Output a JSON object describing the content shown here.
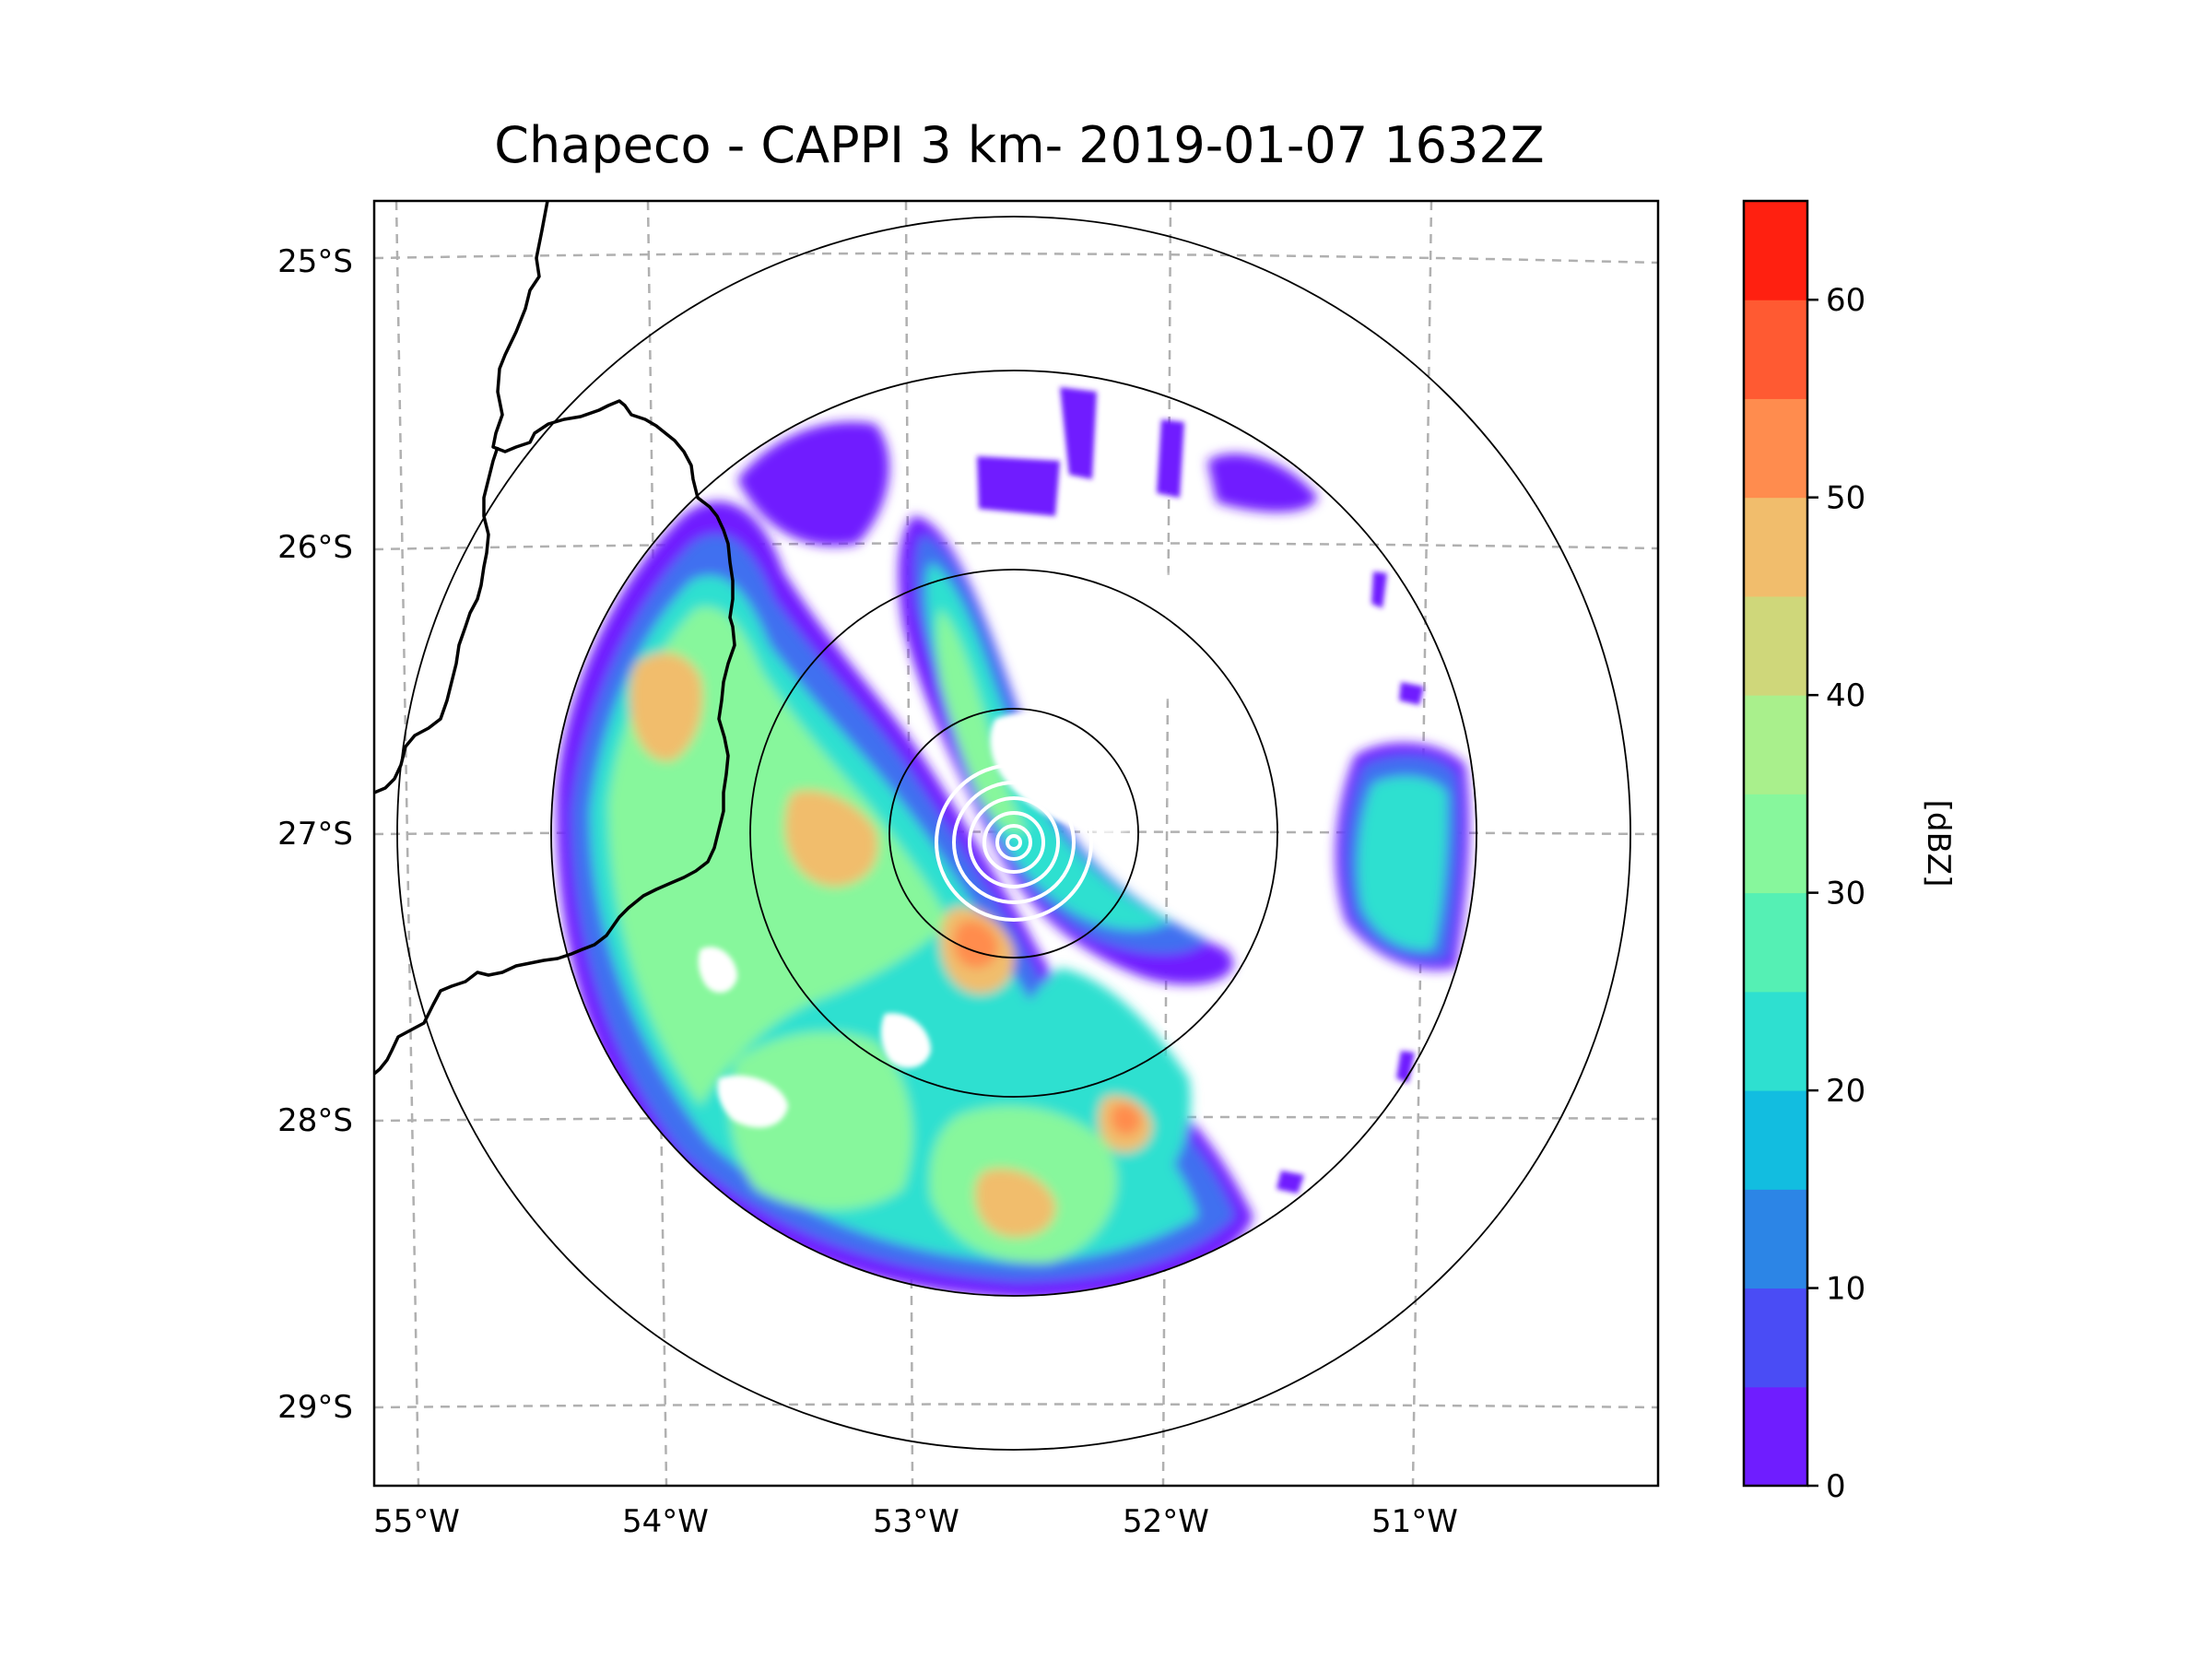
{
  "title": "Chapeco - CAPPI 3 km- 2019-01-07 1632Z",
  "map": {
    "lat_ticks": [
      "25°S",
      "26°S",
      "27°S",
      "28°S",
      "29°S"
    ],
    "lon_ticks": [
      "55°W",
      "54°W",
      "53°W",
      "52°W",
      "51°W"
    ],
    "radar_site": "Chapeco",
    "product": "CAPPI 3 km",
    "range_rings": 4
  },
  "colorbar": {
    "label": "[dBZ]",
    "min": 0,
    "max": 65,
    "step": 5,
    "tick_labels": [
      "0",
      "10",
      "20",
      "30",
      "40",
      "50",
      "60"
    ],
    "colors": [
      "#6f1dff",
      "#4a4cf5",
      "#2c85e6",
      "#12bde0",
      "#2ee0d0",
      "#55f0b4",
      "#87f79c",
      "#a9f08c",
      "#cfd77a",
      "#f1bd6c",
      "#ff8c4e",
      "#ff5a32",
      "#ff2010"
    ]
  },
  "echo_colors": {
    "weak": "#6f1dff",
    "light": "#3f6ff0",
    "moderate": "#2ee0d0",
    "strong": "#87f79c",
    "heavy": "#f1bd6c",
    "intense": "#ff8c4e"
  }
}
